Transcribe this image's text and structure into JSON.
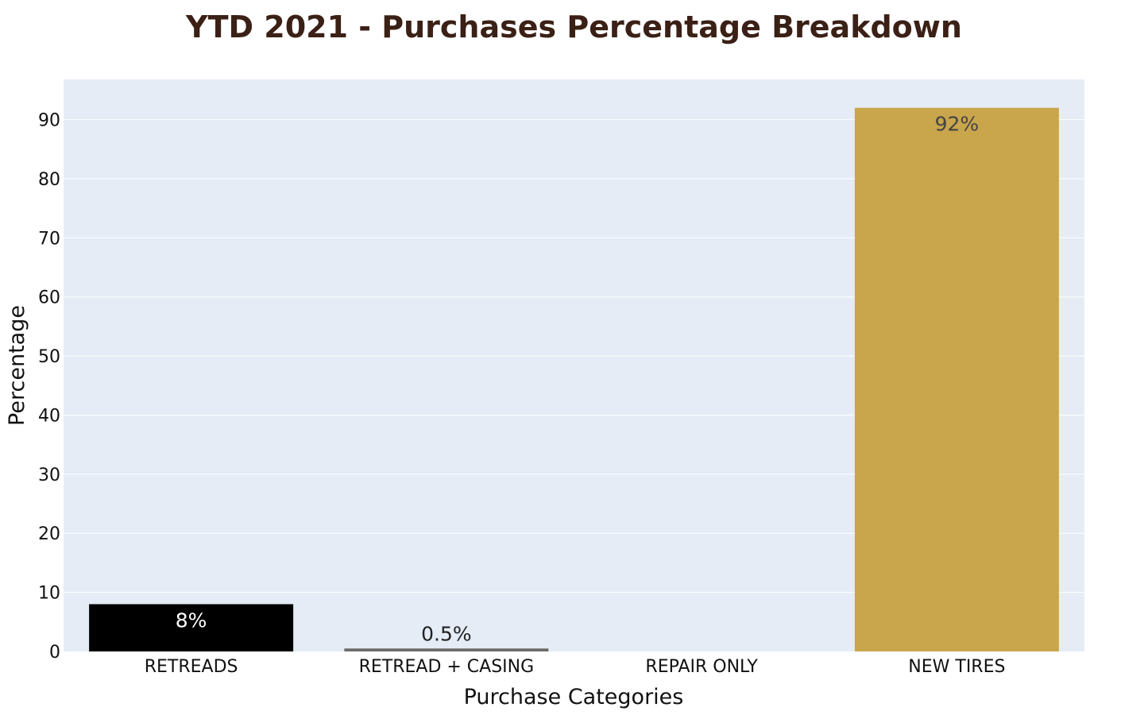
{
  "chart_data": {
    "type": "bar",
    "title": "YTD 2021 - Purchases Percentage Breakdown",
    "xlabel": "Purchase Categories",
    "ylabel": "Percentage",
    "categories": [
      "RETREADS",
      "RETREAD + CASING",
      "REPAIR ONLY",
      "NEW TIRES"
    ],
    "values": [
      8,
      0.5,
      0,
      92
    ],
    "data_labels": [
      "8%",
      "0.5%",
      "",
      "92%"
    ],
    "colors": [
      "#000000",
      "#6b6b6b",
      "#e5ecf6",
      "#c9a54c"
    ],
    "label_colors": [
      "#ffffff",
      "#222222",
      "#222222",
      "#444444"
    ],
    "ylim": [
      0,
      96.8
    ],
    "yticks": [
      0,
      10,
      20,
      30,
      40,
      50,
      60,
      70,
      80,
      90
    ],
    "grid": true,
    "plot_background": "#e5ecf6",
    "title_color": "#3b2016"
  }
}
